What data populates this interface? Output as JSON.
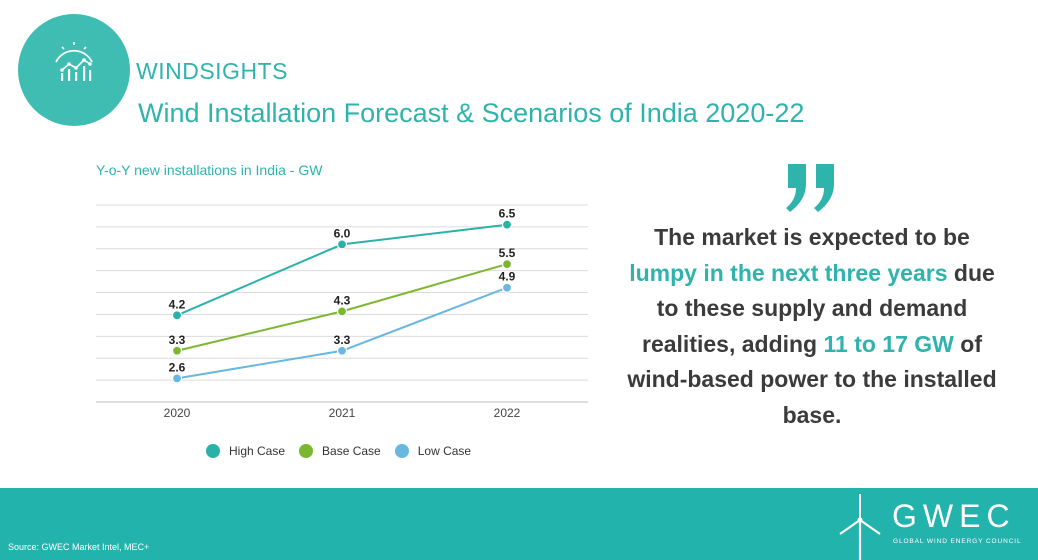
{
  "header": {
    "brand": "WINDSIGHTS",
    "title": "Wind Installation Forecast & Scenarios of India 2020-22",
    "logo_icon": "chart-icon"
  },
  "colors": {
    "accent": "#2fb3ad",
    "high": "#2bb2a8",
    "base": "#7cb82f",
    "low": "#6ab7df",
    "footer": "#23b3ad",
    "quote_text": "#3b3b3b"
  },
  "chart_data": {
    "type": "line",
    "title": "Y-o-Y new installations in India - GW",
    "categories": [
      "2020",
      "2021",
      "2022"
    ],
    "series": [
      {
        "name": "High Case",
        "values": [
          4.2,
          6.0,
          6.5
        ]
      },
      {
        "name": "Base Case",
        "values": [
          3.3,
          4.3,
          5.5
        ]
      },
      {
        "name": "Low Case",
        "values": [
          2.6,
          3.3,
          4.9
        ]
      }
    ],
    "ylim": [
      2,
      7
    ],
    "grid": true,
    "legend": "bottom",
    "data_labels": true
  },
  "quote": {
    "icon": "quote-icon",
    "part1": "The market is expected to be ",
    "highlight1": "lumpy in the next three years",
    "part2": " due to these supply and demand realities, adding ",
    "highlight2": "11 to 17 GW",
    "part3": " of wind-based power to the installed base."
  },
  "footer": {
    "source": "Source: GWEC Market Intel,  MEC+",
    "org_short": "GWEC",
    "org_full": "GLOBAL WIND ENERGY COUNCIL",
    "logo_icon": "wind-turbine-icon"
  }
}
